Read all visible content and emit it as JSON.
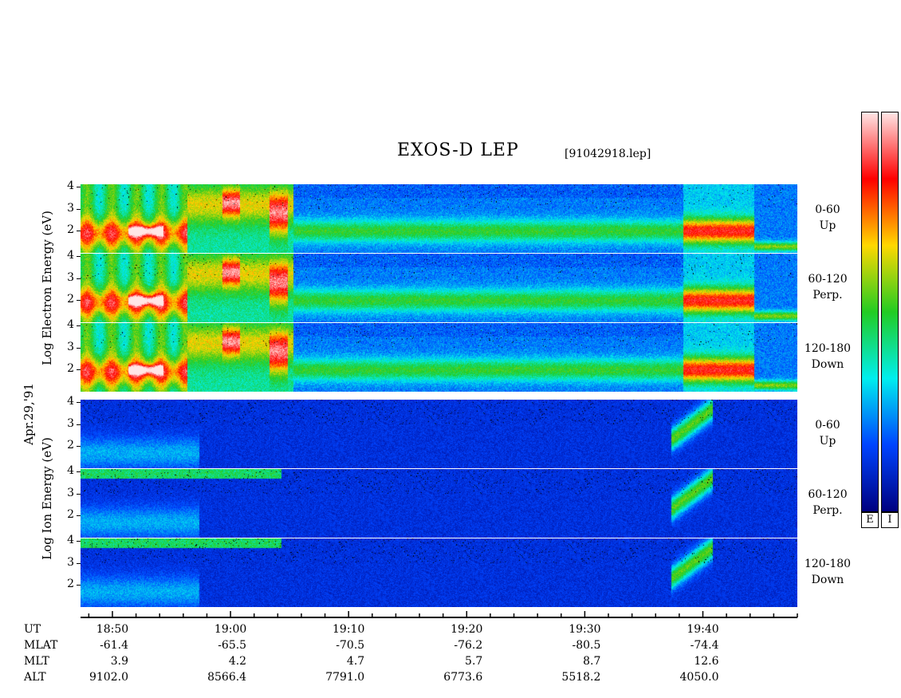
{
  "header": {
    "title": "EXOS-D LEP",
    "filename": "[91042918.lep]"
  },
  "left_labels": {
    "date": "Apr.29,'91",
    "electron_axis": "Log   Electron   Energy  (eV)",
    "ion_axis": "Log   Ion   Energy  (eV)"
  },
  "colorbars": {
    "electron_label": "E",
    "ion_label": "I",
    "stops": [
      "#ffe6e6",
      "#ff0000",
      "#ffd800",
      "#22cc22",
      "#00eeee",
      "#0044ff",
      "#000080"
    ]
  },
  "time_axis": {
    "row_labels": [
      "UT",
      "MLAT",
      "MLT",
      "ALT"
    ],
    "columns": [
      {
        "ut": "18:50",
        "mlat": "-61.4",
        "mlt": "3.9",
        "alt": "9102.0"
      },
      {
        "ut": "19:00",
        "mlat": "-65.5",
        "mlt": "4.2",
        "alt": "8566.4"
      },
      {
        "ut": "19:10",
        "mlat": "-70.5",
        "mlt": "4.7",
        "alt": "7791.0"
      },
      {
        "ut": "19:20",
        "mlat": "-76.2",
        "mlt": "5.7",
        "alt": "6773.6"
      },
      {
        "ut": "19:30",
        "mlat": "-80.5",
        "mlt": "8.7",
        "alt": "5518.2"
      },
      {
        "ut": "19:40",
        "mlat": "-74.4",
        "mlt": "12.6",
        "alt": "4050.0"
      }
    ]
  },
  "chart_data": {
    "type": "heatmap",
    "x_axis": {
      "label": "UT",
      "range": [
        "18:47",
        "19:48"
      ],
      "major_ticks": [
        "18:50",
        "19:00",
        "19:10",
        "19:20",
        "19:30",
        "19:40"
      ]
    },
    "y_axis": {
      "label": "Log Energy (eV)",
      "range": [
        1,
        4.1
      ],
      "ticks": [
        "2",
        "3",
        "4"
      ]
    },
    "panels": [
      {
        "species": "Electron",
        "pitch_angle": "0-60",
        "direction": "Up",
        "yticks": [
          "4",
          "3",
          "2"
        ]
      },
      {
        "species": "Electron",
        "pitch_angle": "60-120",
        "direction": "Perp.",
        "yticks": [
          "4",
          "3",
          "2"
        ]
      },
      {
        "species": "Electron",
        "pitch_angle": "120-180",
        "direction": "Down",
        "yticks": [
          "4",
          "3",
          "2"
        ]
      },
      {
        "species": "Ion",
        "pitch_angle": "0-60",
        "direction": "Up",
        "yticks": [
          "4",
          "3",
          "2"
        ]
      },
      {
        "species": "Ion",
        "pitch_angle": "60-120",
        "direction": "Perp.",
        "yticks": [
          "4",
          "3",
          "2"
        ]
      },
      {
        "species": "Ion",
        "pitch_angle": "120-180",
        "direction": "Down",
        "yticks": [
          "4",
          "3",
          "2"
        ]
      }
    ]
  }
}
